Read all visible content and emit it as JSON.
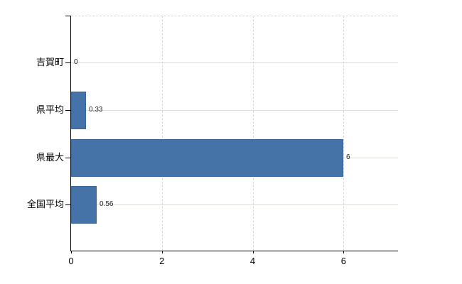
{
  "chart_data": {
    "type": "bar",
    "orientation": "horizontal",
    "title": "",
    "categories": [
      "吉賀町",
      "県平均",
      "県最大",
      "全国平均"
    ],
    "values": [
      0,
      0.33,
      6,
      0.56
    ],
    "value_labels": [
      "0",
      "0.33",
      "6",
      "0.56"
    ],
    "x_ticks": [
      0,
      2,
      4,
      6
    ],
    "x_tick_labels": [
      "0",
      "2",
      "4",
      "6"
    ],
    "xlim": [
      0,
      7.2
    ],
    "grid": "on",
    "legend": "none",
    "bar_color": "#4572a7",
    "bar_border_color": "#3a639a",
    "gridline_h_color": "#d9ddd3",
    "gridline_v_color": "#d6d6d6",
    "axis_color": "#000000",
    "label_color": "#222222"
  }
}
